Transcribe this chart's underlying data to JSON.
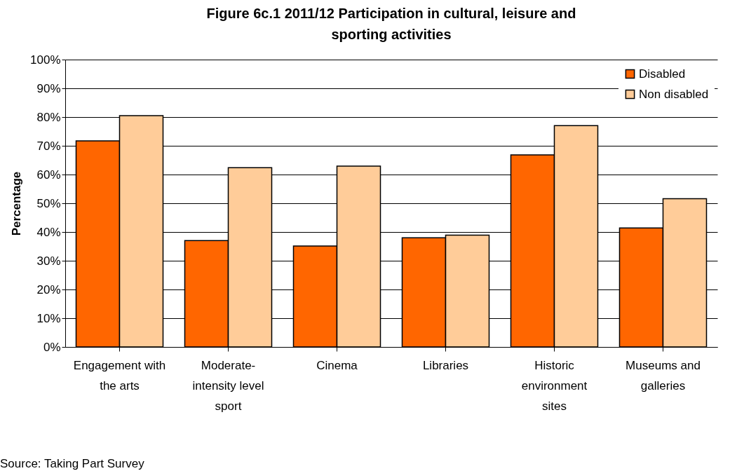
{
  "chart_data": {
    "type": "bar",
    "title": "Figure 6c.1 2011/12 Participation in cultural, leisure and sporting activities",
    "ylabel": "Percentage",
    "categories": [
      "Engagement with the arts",
      "Moderate-intensity level sport",
      "Cinema",
      "Libraries",
      "Historic environment sites",
      "Museums and galleries"
    ],
    "series": [
      {
        "name": "Disabled",
        "color": "#ff6600",
        "values": [
          71.7,
          37.0,
          35.1,
          38.0,
          66.8,
          41.4
        ]
      },
      {
        "name": "Non disabled",
        "color": "#ffcc99",
        "values": [
          80.5,
          62.4,
          62.9,
          38.9,
          77.0,
          51.6
        ]
      }
    ],
    "ylim": [
      0,
      100
    ],
    "yticks": [
      {
        "value": 0,
        "label": "0%"
      },
      {
        "value": 10,
        "label": "10%"
      },
      {
        "value": 20,
        "label": "20%"
      },
      {
        "value": 30,
        "label": "30%"
      },
      {
        "value": 40,
        "label": "40%"
      },
      {
        "value": 50,
        "label": "50%"
      },
      {
        "value": 60,
        "label": "60%"
      },
      {
        "value": 70,
        "label": "70%"
      },
      {
        "value": 80,
        "label": "80%"
      },
      {
        "value": 90,
        "label": "90%"
      },
      {
        "value": 100,
        "label": "100%"
      }
    ],
    "grid": "y",
    "legend": "top right",
    "annotations": [
      "Source: Taking Part Survey"
    ]
  }
}
